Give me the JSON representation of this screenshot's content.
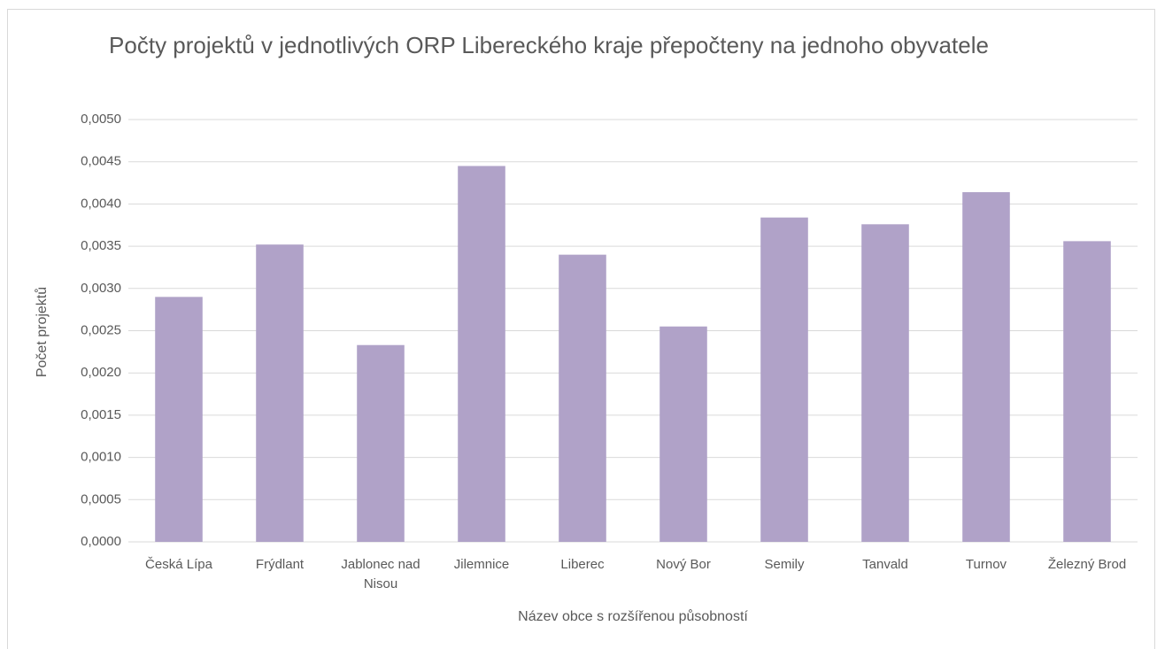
{
  "chart_data": {
    "type": "bar",
    "title": "Počty projektů v jednotlivých ORP Libereckého kraje přepočteny na jednoho obyvatele",
    "x_label": "Název obce s rozšířenou působností",
    "y_label": "Počet projektů",
    "categories": [
      "Česká Lípa",
      "Frýdlant",
      "Jablonec nad Nisou",
      "Jilemnice",
      "Liberec",
      "Nový Bor",
      "Semily",
      "Tanvald",
      "Turnov",
      "Železný Brod"
    ],
    "values": [
      0.0029,
      0.00352,
      0.00233,
      0.00445,
      0.0034,
      0.00255,
      0.00384,
      0.00376,
      0.00414,
      0.00356
    ],
    "color": "#b0a2c8",
    "ylim": [
      0,
      0.005
    ],
    "yticks": [
      {
        "value": 0,
        "label": "0,0000"
      },
      {
        "value": 0.0005,
        "label": "0,0005"
      },
      {
        "value": 0.001,
        "label": "0,0010"
      },
      {
        "value": 0.0015,
        "label": "0,0015"
      },
      {
        "value": 0.002,
        "label": "0,0020"
      },
      {
        "value": 0.0025,
        "label": "0,0025"
      },
      {
        "value": 0.003,
        "label": "0,0030"
      },
      {
        "value": 0.0035,
        "label": "0,0035"
      },
      {
        "value": 0.004,
        "label": "0,0040"
      },
      {
        "value": 0.0045,
        "label": "0,0045"
      },
      {
        "value": 0.005,
        "label": "0,0050"
      }
    ],
    "grid": true
  }
}
